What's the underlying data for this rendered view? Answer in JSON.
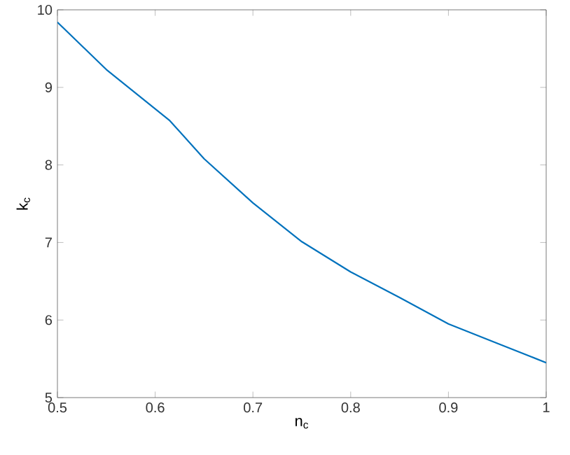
{
  "chart_data": {
    "type": "line",
    "xlabel": "n$_{c}$",
    "ylabel": "k$_{c}$",
    "x": [
      0.5,
      0.55,
      0.615,
      0.65,
      0.7,
      0.75,
      0.8,
      0.85,
      0.9,
      0.95,
      1.0
    ],
    "series": [
      {
        "color": "#0072bd",
        "values": [
          9.84,
          9.23,
          8.57,
          8.08,
          7.51,
          7.01,
          6.62,
          6.29,
          5.95,
          5.7,
          5.45
        ]
      }
    ],
    "xlim": [
      0.5,
      1
    ],
    "ylim": [
      5,
      10
    ],
    "xticks": [
      0.5,
      0.6,
      0.7,
      0.8,
      0.9,
      1
    ],
    "yticks": [
      5,
      6,
      7,
      8,
      9,
      10
    ],
    "grid": false,
    "marker": "none",
    "line_style": "solid"
  }
}
